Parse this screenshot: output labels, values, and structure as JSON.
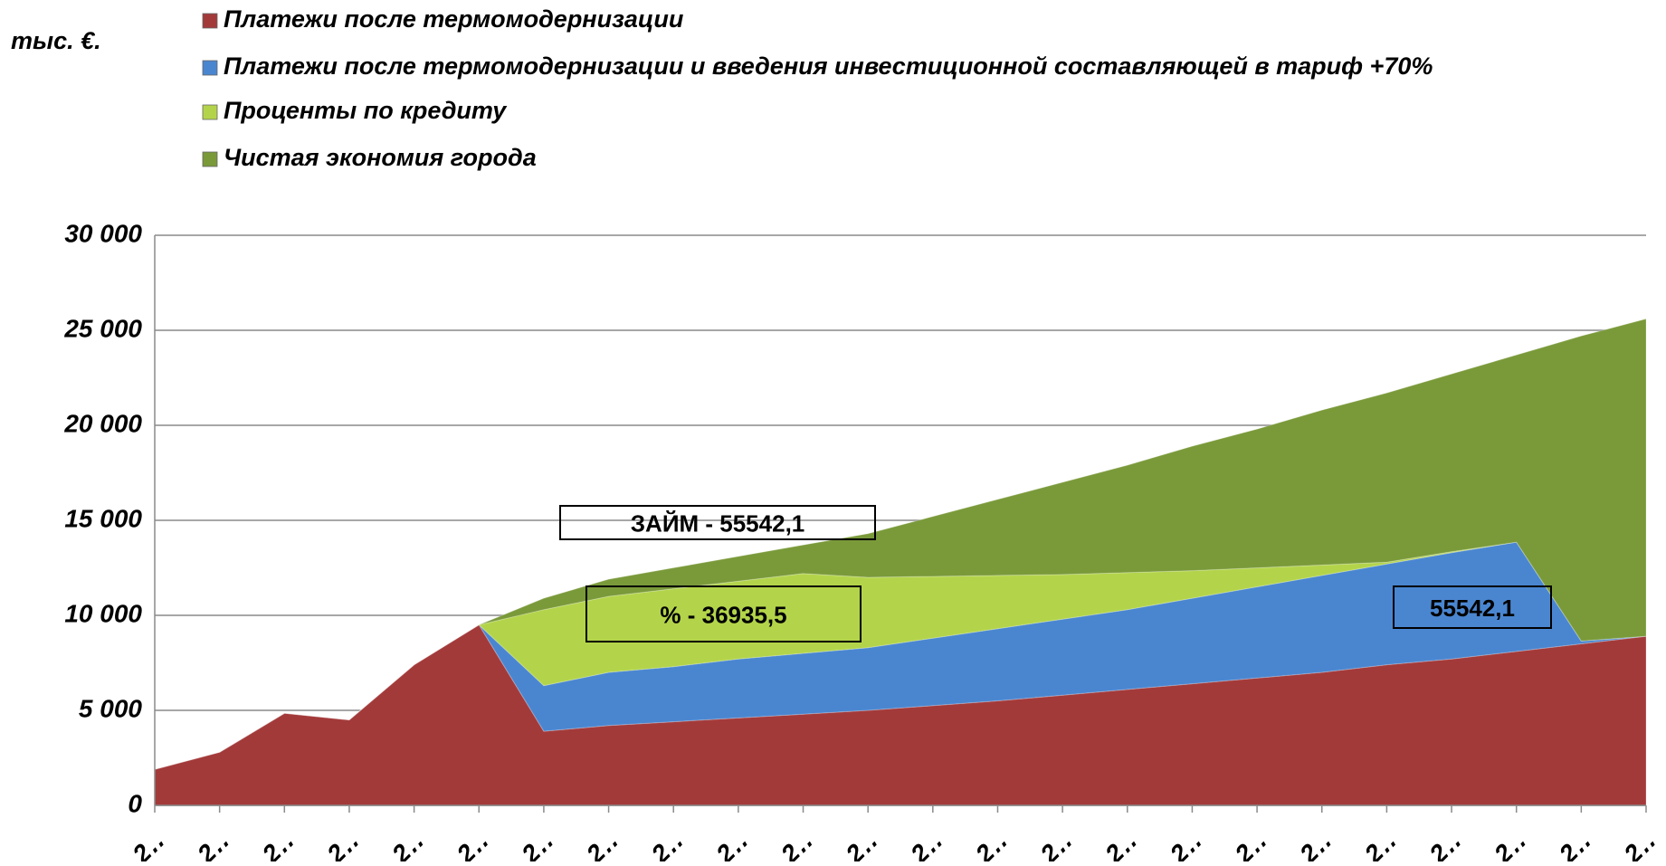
{
  "chart_data": {
    "type": "stacked-area",
    "ylabel": "тыс. €.",
    "categories": [
      "2‥",
      "2‥",
      "2‥",
      "2‥",
      "2‥",
      "2‥",
      "2‥",
      "2‥",
      "2‥",
      "2‥",
      "2‥",
      "2‥",
      "2‥",
      "2‥",
      "2‥",
      "2‥",
      "2‥",
      "2‥",
      "2‥",
      "2‥",
      "2‥",
      "2‥",
      "2‥",
      "2‥"
    ],
    "series": [
      {
        "name": "Платежи после термомодернизации",
        "color": "#a33a3a",
        "values": [
          1900,
          2800,
          4850,
          4500,
          7400,
          9500,
          3900,
          4200,
          4400,
          4600,
          4800,
          5000,
          5250,
          5500,
          5800,
          6100,
          6400,
          6700,
          7000,
          7400,
          7700,
          8100,
          8500,
          8900
        ]
      },
      {
        "name": "Платежи после термомодернизации и введения инвестиционной составляющей в тариф +70%",
        "color": "#4a86d0",
        "values": [
          0,
          0,
          0,
          0,
          0,
          0,
          2400,
          2800,
          2900,
          3100,
          3200,
          3300,
          3550,
          3800,
          4000,
          4200,
          4500,
          4800,
          5100,
          5300,
          5600,
          5750,
          150,
          0
        ]
      },
      {
        "name": "Проценты по кредиту",
        "color": "#b3d44a",
        "values": [
          0,
          0,
          0,
          0,
          0,
          0,
          4000,
          4000,
          4100,
          4100,
          4200,
          3700,
          3250,
          2800,
          2350,
          1950,
          1450,
          1000,
          550,
          100,
          50,
          0,
          0,
          0
        ]
      },
      {
        "name": "Чистая экономия города",
        "color": "#7a9a3a",
        "values": [
          0,
          0,
          0,
          0,
          0,
          0,
          600,
          900,
          1100,
          1300,
          1500,
          2300,
          3150,
          4000,
          4850,
          5650,
          6550,
          7300,
          8150,
          8900,
          9350,
          9850,
          16050,
          16700
        ]
      }
    ],
    "annotations": [
      "ЗАЙМ  -  55542,1",
      "%  -  36935,5",
      "55542,1"
    ],
    "ylim": [
      0,
      30000
    ],
    "yticks": [
      0,
      {
        "value": 5000,
        "label": "5 000"
      },
      {
        "value": 10000,
        "label": "10 000"
      },
      {
        "value": 15000,
        "label": "15 000"
      },
      {
        "value": 20000,
        "label": "20 000"
      },
      {
        "value": 25000,
        "label": "25 000"
      },
      {
        "value": 30000,
        "label": "30 000"
      }
    ],
    "grid": true
  }
}
